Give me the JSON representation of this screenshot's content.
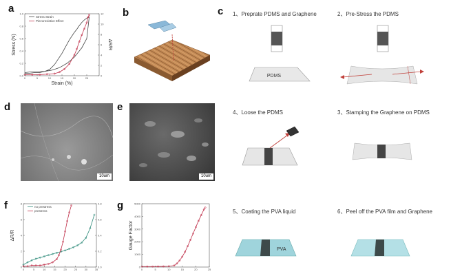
{
  "panels": {
    "a": "a",
    "b": "b",
    "c": "c",
    "d": "d",
    "e": "e",
    "f": "f",
    "g": "g"
  },
  "colors": {
    "black_curve": "#444444",
    "red_curve": "#c0304a",
    "teal_curve": "#2e8b7a",
    "pdms_fill": "#e6e6e6",
    "graphene": "#555555",
    "pva_fill": "#9fd4dc",
    "arrow": "#c0403a",
    "sem_d": "#8a8a8a",
    "sem_e": "#4a4a4a"
  },
  "scale_bars": {
    "d": "10um",
    "e": "10um"
  },
  "steps": {
    "s1": "1、Preprate PDMS and Graphene",
    "s2": "2、Pre-Stress the  PDMS",
    "s3": "3、Stamping the Graphene on PDMS",
    "s4": "4、Loose the PDMS",
    "s5": "5、Coating the PVA liquid",
    "s6": "6、Peel off the PVA film and Graphene"
  },
  "diagram_labels": {
    "pdms": "PDMS",
    "pva": "PVA"
  },
  "chart_data": [
    {
      "panel": "a",
      "type": "line",
      "xlabel": "Strain (%)",
      "ylabel": "Stress (N)",
      "y2label": "ΔR/R",
      "xlim": [
        0,
        30
      ],
      "ylim": [
        0,
        1.0
      ],
      "y2lim": [
        0,
        12
      ],
      "x_ticks": [
        "0",
        "5",
        "10",
        "15",
        "20",
        "25"
      ],
      "y_ticks": [
        "0.0",
        "0.2",
        "0.4",
        "0.6",
        "0.8",
        "1.0"
      ],
      "y2_ticks": [
        "0",
        "2",
        "4",
        "6",
        "8",
        "10",
        "12"
      ],
      "legend": [
        "Stress Strain",
        "Piezoresistive Effect"
      ],
      "series": [
        {
          "name": "Stress Strain",
          "axis": "left",
          "x": [
            0,
            2,
            5,
            8,
            10,
            12,
            15,
            18,
            20,
            21,
            22,
            23,
            24,
            25,
            26,
            25,
            23,
            20,
            17,
            14,
            11,
            8,
            6,
            4,
            2,
            0
          ],
          "y": [
            0.05,
            0.06,
            0.06,
            0.07,
            0.1,
            0.18,
            0.36,
            0.58,
            0.7,
            0.75,
            0.81,
            0.86,
            0.9,
            0.93,
            0.95,
            0.6,
            0.45,
            0.3,
            0.2,
            0.13,
            0.09,
            0.07,
            0.05,
            0.05,
            0.04,
            0.04
          ]
        },
        {
          "name": "Piezoresistive Effect",
          "axis": "right",
          "x": [
            0,
            3,
            6,
            9,
            12,
            14,
            16,
            18,
            20,
            21,
            22,
            23,
            24,
            25,
            25.5,
            26
          ],
          "y": [
            0.2,
            0.2,
            0.2,
            0.3,
            0.4,
            0.7,
            1.3,
            2.3,
            4.0,
            5.2,
            6.6,
            7.9,
            9.1,
            10.3,
            11.3,
            11.8
          ]
        }
      ]
    },
    {
      "panel": "f",
      "type": "line",
      "xlabel": "",
      "ylabel": "ΔR/R",
      "y2label": "",
      "xlim": [
        0,
        35
      ],
      "ylim": [
        0,
        8
      ],
      "y2lim": [
        0,
        0.8
      ],
      "x_ticks": [
        "0",
        "5",
        "10",
        "15",
        "20",
        "25",
        "30",
        "35"
      ],
      "y_ticks": [
        "0",
        "2",
        "4",
        "6",
        "8"
      ],
      "y2_ticks": [
        "0.0",
        "0.2",
        "0.4",
        "0.6",
        "0.8"
      ],
      "legend": [
        "no prestress",
        "prestress"
      ],
      "series": [
        {
          "name": "no prestress",
          "axis": "left",
          "x": [
            0,
            2,
            4,
            6,
            8,
            10,
            12,
            14,
            16,
            18,
            20,
            22,
            24,
            26,
            28,
            30,
            32,
            34
          ],
          "y": [
            0.3,
            0.6,
            0.85,
            1.05,
            1.2,
            1.35,
            1.5,
            1.65,
            1.8,
            1.95,
            2.1,
            2.3,
            2.5,
            2.75,
            3.1,
            3.7,
            4.9,
            6.6
          ]
        },
        {
          "name": "prestress",
          "axis": "right",
          "x": [
            0,
            2,
            4,
            6,
            8,
            10,
            12,
            14,
            16,
            17,
            18,
            19,
            20,
            21,
            22,
            23
          ],
          "y": [
            0.01,
            0.01,
            0.02,
            0.02,
            0.02,
            0.03,
            0.04,
            0.06,
            0.1,
            0.15,
            0.22,
            0.32,
            0.45,
            0.58,
            0.69,
            0.78
          ]
        }
      ]
    },
    {
      "panel": "g",
      "type": "line",
      "xlabel": "",
      "ylabel": "Gauge Factor",
      "xlim": [
        0,
        25
      ],
      "ylim": [
        0,
        5000
      ],
      "x_ticks": [
        "0",
        "5",
        "10",
        "15",
        "20",
        "25"
      ],
      "y_ticks": [
        "0",
        "1000",
        "2000",
        "3000",
        "4000",
        "5000"
      ],
      "series": [
        {
          "name": "",
          "x": [
            0,
            2,
            4,
            6,
            8,
            10,
            12,
            13,
            14,
            15,
            16,
            17,
            18,
            19,
            20,
            21,
            22,
            23,
            23.5
          ],
          "y": [
            40,
            40,
            40,
            45,
            50,
            60,
            120,
            280,
            520,
            820,
            1200,
            1650,
            2150,
            2650,
            3150,
            3650,
            4100,
            4550,
            4700
          ]
        }
      ]
    }
  ]
}
